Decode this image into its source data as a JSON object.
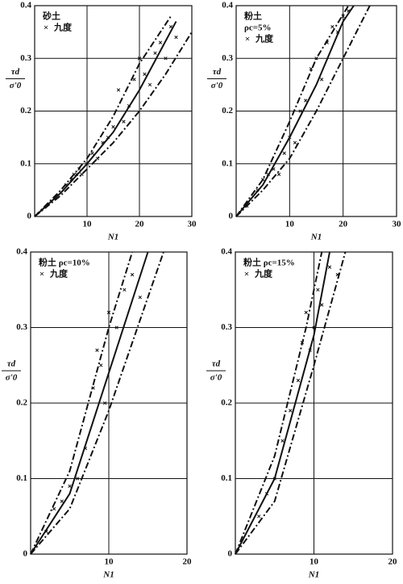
{
  "chart_data": [
    {
      "type": "line",
      "annotation": [
        "砂土"
      ],
      "legend": "九度",
      "ylabel_num": "τd",
      "ylabel_den": "σ'0",
      "xlabel": "N1",
      "xlim": [
        0,
        30
      ],
      "ylim": [
        0,
        0.4
      ],
      "xticks": [
        10,
        20,
        30
      ],
      "yticks": [
        0,
        0.1,
        0.2,
        0.3,
        0.4
      ],
      "grid": true,
      "color": "#111",
      "curves": [
        {
          "style": "dashed",
          "x": [
            0,
            5,
            10,
            15,
            20,
            26
          ],
          "y": [
            0,
            0.05,
            0.11,
            0.19,
            0.29,
            0.38
          ]
        },
        {
          "style": "solid",
          "x": [
            0,
            5,
            10,
            15,
            20,
            27
          ],
          "y": [
            0,
            0.045,
            0.1,
            0.16,
            0.24,
            0.37
          ]
        },
        {
          "style": "dashed",
          "x": [
            0,
            5,
            10,
            15,
            20,
            25,
            30
          ],
          "y": [
            0,
            0.04,
            0.09,
            0.14,
            0.2,
            0.27,
            0.35
          ]
        }
      ],
      "points": {
        "x": [
          6,
          7,
          7.5,
          8,
          8.5,
          9,
          10,
          11,
          12,
          13,
          14,
          15,
          16,
          17,
          18,
          19,
          20,
          21,
          22,
          23,
          24,
          25,
          26,
          27
        ],
        "y": [
          0.06,
          0.07,
          0.08,
          0.08,
          0.09,
          0.08,
          0.1,
          0.12,
          0.11,
          0.14,
          0.15,
          0.17,
          0.24,
          0.18,
          0.21,
          0.26,
          0.3,
          0.27,
          0.25,
          0.31,
          0.33,
          0.3,
          0.36,
          0.34
        ]
      }
    },
    {
      "type": "line",
      "annotation": [
        "粉土",
        "ρc=5%"
      ],
      "legend": "九度",
      "ylabel_num": "τd",
      "ylabel_den": "σ'0",
      "xlabel": "N1",
      "xlim": [
        0,
        30
      ],
      "ylim": [
        0,
        0.4
      ],
      "xticks": [
        10,
        20,
        30
      ],
      "yticks": [
        0,
        0.1,
        0.2,
        0.3,
        0.4
      ],
      "grid": true,
      "color": "#111",
      "curves": [
        {
          "style": "dashed",
          "x": [
            0,
            5,
            10,
            15,
            21
          ],
          "y": [
            0,
            0.07,
            0.18,
            0.3,
            0.4
          ]
        },
        {
          "style": "solid",
          "x": [
            0,
            5,
            10,
            15,
            20,
            22
          ],
          "y": [
            0,
            0.06,
            0.15,
            0.25,
            0.37,
            0.4
          ]
        },
        {
          "style": "dashed",
          "x": [
            0,
            5,
            10,
            15,
            20,
            25
          ],
          "y": [
            0,
            0.05,
            0.11,
            0.2,
            0.3,
            0.4
          ]
        }
      ],
      "points": {
        "x": [
          2,
          4,
          5,
          6,
          7,
          8,
          9,
          10,
          11,
          12,
          13,
          14,
          15,
          16,
          17,
          18,
          19,
          20,
          21
        ],
        "y": [
          0.02,
          0.05,
          0.07,
          0.08,
          0.09,
          0.08,
          0.12,
          0.15,
          0.14,
          0.2,
          0.22,
          0.28,
          0.3,
          0.26,
          0.33,
          0.36,
          0.35,
          0.38,
          0.39
        ]
      }
    },
    {
      "type": "line",
      "annotation": [
        "粉土 ρc=10%"
      ],
      "legend": "九度",
      "ylabel_num": "τd",
      "ylabel_den": "σ'0",
      "xlabel": "N1",
      "xlim": [
        0,
        20
      ],
      "ylim": [
        0,
        0.4
      ],
      "xticks": [
        10,
        20
      ],
      "yticks": [
        0,
        0.1,
        0.2,
        0.3,
        0.4
      ],
      "grid": true,
      "color": "#111",
      "curves": [
        {
          "style": "dashed",
          "x": [
            0,
            5,
            10,
            13
          ],
          "y": [
            0,
            0.11,
            0.3,
            0.4
          ]
        },
        {
          "style": "solid",
          "x": [
            0,
            5,
            10,
            15
          ],
          "y": [
            0,
            0.08,
            0.24,
            0.4
          ]
        },
        {
          "style": "dashed",
          "x": [
            0,
            5,
            10,
            17
          ],
          "y": [
            0,
            0.06,
            0.19,
            0.4
          ]
        }
      ],
      "points": {
        "x": [
          2,
          3,
          4,
          5,
          6,
          7,
          8,
          8.5,
          9,
          9.5,
          10,
          11,
          12,
          13,
          14
        ],
        "y": [
          0.03,
          0.06,
          0.07,
          0.09,
          0.1,
          0.14,
          0.22,
          0.27,
          0.25,
          0.2,
          0.32,
          0.3,
          0.35,
          0.37,
          0.34
        ]
      }
    },
    {
      "type": "line",
      "annotation": [
        "粉土 ρc=15%"
      ],
      "legend": "九度",
      "ylabel_num": "τd",
      "ylabel_den": "σ'0",
      "xlabel": "N1",
      "xlim": [
        0,
        20
      ],
      "ylim": [
        0,
        0.4
      ],
      "xticks": [
        10,
        20
      ],
      "yticks": [
        0,
        0.1,
        0.2,
        0.3,
        0.4
      ],
      "grid": true,
      "color": "#111",
      "curves": [
        {
          "style": "dashed",
          "x": [
            0,
            5,
            9,
            11
          ],
          "y": [
            0,
            0.13,
            0.3,
            0.4
          ]
        },
        {
          "style": "solid",
          "x": [
            0,
            5,
            10,
            12
          ],
          "y": [
            0,
            0.1,
            0.29,
            0.4
          ]
        },
        {
          "style": "dashed",
          "x": [
            0,
            5,
            10,
            14
          ],
          "y": [
            0,
            0.07,
            0.25,
            0.4
          ]
        }
      ],
      "points": {
        "x": [
          3,
          4,
          5,
          6,
          7,
          8,
          8.5,
          9,
          9.5,
          10,
          10.5,
          11,
          12,
          13
        ],
        "y": [
          0.05,
          0.08,
          0.1,
          0.15,
          0.19,
          0.23,
          0.28,
          0.32,
          0.27,
          0.3,
          0.35,
          0.33,
          0.38,
          0.37
        ]
      }
    }
  ]
}
